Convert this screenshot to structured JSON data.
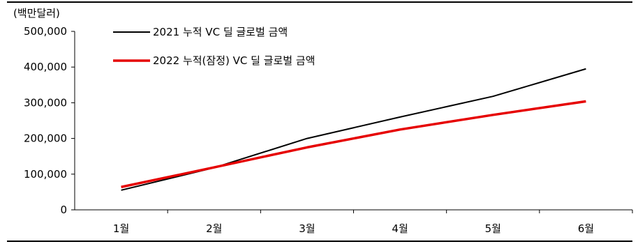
{
  "chart_data": {
    "type": "line",
    "unit_label": "(백만달러)",
    "categories": [
      "1월",
      "2월",
      "3월",
      "4월",
      "5월",
      "6월"
    ],
    "y_ticks": [
      "0",
      "100,000",
      "200,000",
      "300,000",
      "400,000",
      "500,000"
    ],
    "ylim": [
      0,
      500000
    ],
    "grid": false,
    "legend_position": "top-left",
    "series": [
      {
        "name": "2021 누적 VC 딜 글로벌 금액",
        "color": "#000000",
        "values": [
          55000,
          118000,
          200000,
          260000,
          318000,
          395000
        ]
      },
      {
        "name": "2022 누적(잠정) VC 딜 글로벌 금액",
        "color": "#e60000",
        "values": [
          64000,
          119000,
          175000,
          225000,
          266000,
          304000
        ]
      }
    ]
  }
}
